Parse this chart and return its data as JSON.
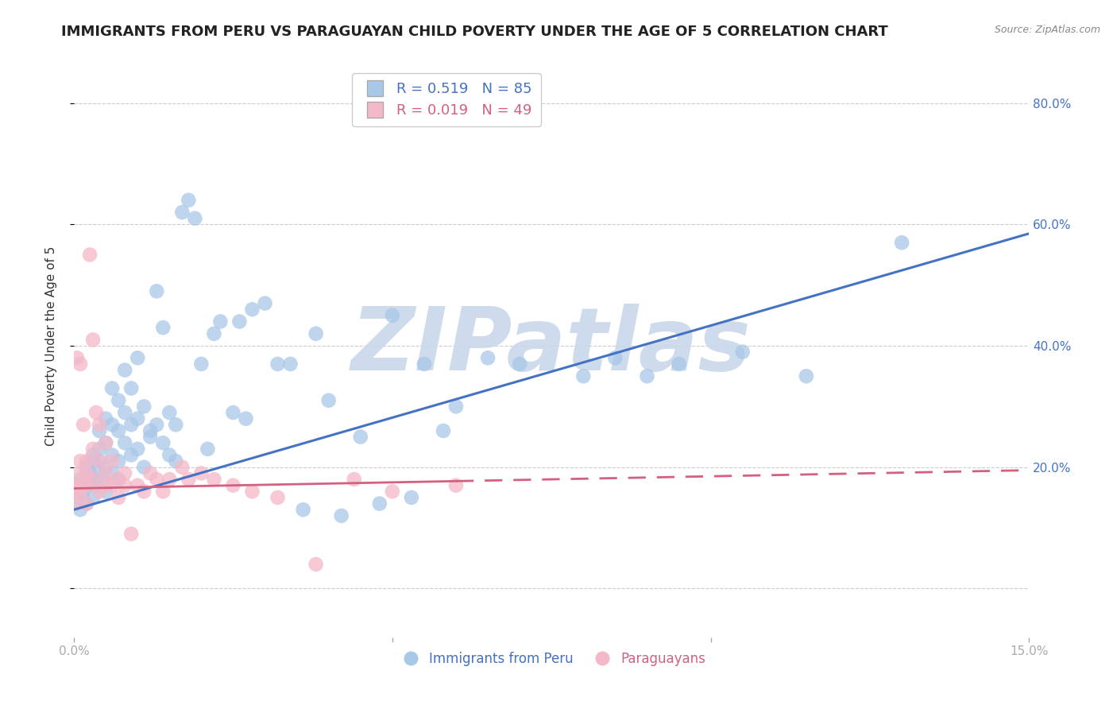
{
  "title": "IMMIGRANTS FROM PERU VS PARAGUAYAN CHILD POVERTY UNDER THE AGE OF 5 CORRELATION CHART",
  "source": "Source: ZipAtlas.com",
  "ylabel": "Child Poverty Under the Age of 5",
  "xlim": [
    0.0,
    0.15
  ],
  "ylim": [
    -0.08,
    0.88
  ],
  "yticks": [
    0.0,
    0.2,
    0.4,
    0.6,
    0.8
  ],
  "ytick_labels": [
    "",
    "20.0%",
    "40.0%",
    "60.0%",
    "80.0%"
  ],
  "xticks": [
    0.0,
    0.05,
    0.1,
    0.15
  ],
  "xtick_labels": [
    "0.0%",
    "",
    "",
    "15.0%"
  ],
  "blue_R": 0.519,
  "blue_N": 85,
  "pink_R": 0.019,
  "pink_N": 49,
  "legend_label_blue": "Immigrants from Peru",
  "legend_label_pink": "Paraguayans",
  "blue_color": "#a8c8e8",
  "pink_color": "#f4b8c8",
  "blue_line_color": "#4472c4",
  "pink_line_color": "#d46080",
  "watermark": "ZIPatlas",
  "watermark_color": "#c8d8ea",
  "title_fontsize": 13,
  "axis_label_fontsize": 11,
  "tick_fontsize": 11,
  "legend_fontsize": 13,
  "blue_scatter_x": [
    0.0005,
    0.001,
    0.001,
    0.0015,
    0.002,
    0.002,
    0.002,
    0.0025,
    0.003,
    0.003,
    0.003,
    0.003,
    0.0035,
    0.004,
    0.004,
    0.004,
    0.004,
    0.0045,
    0.005,
    0.005,
    0.005,
    0.005,
    0.006,
    0.006,
    0.006,
    0.006,
    0.007,
    0.007,
    0.007,
    0.007,
    0.008,
    0.008,
    0.008,
    0.009,
    0.009,
    0.009,
    0.01,
    0.01,
    0.01,
    0.011,
    0.011,
    0.012,
    0.012,
    0.013,
    0.013,
    0.014,
    0.014,
    0.015,
    0.015,
    0.016,
    0.016,
    0.017,
    0.018,
    0.019,
    0.02,
    0.021,
    0.022,
    0.023,
    0.025,
    0.026,
    0.027,
    0.028,
    0.03,
    0.032,
    0.034,
    0.036,
    0.038,
    0.04,
    0.042,
    0.045,
    0.048,
    0.05,
    0.053,
    0.055,
    0.058,
    0.06,
    0.065,
    0.07,
    0.08,
    0.085,
    0.09,
    0.095,
    0.105,
    0.115,
    0.13
  ],
  "blue_scatter_y": [
    0.15,
    0.13,
    0.18,
    0.16,
    0.2,
    0.17,
    0.14,
    0.19,
    0.21,
    0.18,
    0.15,
    0.22,
    0.17,
    0.23,
    0.19,
    0.26,
    0.21,
    0.18,
    0.24,
    0.2,
    0.28,
    0.16,
    0.27,
    0.22,
    0.19,
    0.33,
    0.26,
    0.21,
    0.31,
    0.18,
    0.29,
    0.24,
    0.36,
    0.27,
    0.22,
    0.33,
    0.28,
    0.23,
    0.38,
    0.2,
    0.3,
    0.25,
    0.26,
    0.27,
    0.49,
    0.24,
    0.43,
    0.22,
    0.29,
    0.21,
    0.27,
    0.62,
    0.64,
    0.61,
    0.37,
    0.23,
    0.42,
    0.44,
    0.29,
    0.44,
    0.28,
    0.46,
    0.47,
    0.37,
    0.37,
    0.13,
    0.42,
    0.31,
    0.12,
    0.25,
    0.14,
    0.45,
    0.15,
    0.37,
    0.26,
    0.3,
    0.38,
    0.37,
    0.35,
    0.38,
    0.35,
    0.37,
    0.39,
    0.35,
    0.57
  ],
  "pink_scatter_x": [
    0.0002,
    0.0003,
    0.0004,
    0.0005,
    0.001,
    0.001,
    0.001,
    0.001,
    0.001,
    0.0015,
    0.002,
    0.002,
    0.002,
    0.002,
    0.0025,
    0.003,
    0.003,
    0.003,
    0.0035,
    0.004,
    0.004,
    0.004,
    0.005,
    0.005,
    0.005,
    0.006,
    0.006,
    0.007,
    0.007,
    0.008,
    0.008,
    0.009,
    0.01,
    0.011,
    0.012,
    0.013,
    0.014,
    0.015,
    0.017,
    0.018,
    0.02,
    0.022,
    0.025,
    0.028,
    0.032,
    0.038,
    0.044,
    0.05,
    0.06
  ],
  "pink_scatter_y": [
    0.17,
    0.16,
    0.14,
    0.38,
    0.37,
    0.19,
    0.21,
    0.16,
    0.17,
    0.27,
    0.17,
    0.19,
    0.14,
    0.21,
    0.55,
    0.41,
    0.23,
    0.18,
    0.29,
    0.21,
    0.16,
    0.27,
    0.17,
    0.19,
    0.24,
    0.17,
    0.21,
    0.15,
    0.18,
    0.19,
    0.17,
    0.09,
    0.17,
    0.16,
    0.19,
    0.18,
    0.16,
    0.18,
    0.2,
    0.18,
    0.19,
    0.18,
    0.17,
    0.16,
    0.15,
    0.04,
    0.18,
    0.16,
    0.17
  ],
  "blue_trendline_x": [
    0.0,
    0.15
  ],
  "blue_trendline_y": [
    0.13,
    0.585
  ],
  "pink_trendline_x": [
    0.0,
    0.15
  ],
  "pink_trendline_y": [
    0.165,
    0.195
  ]
}
